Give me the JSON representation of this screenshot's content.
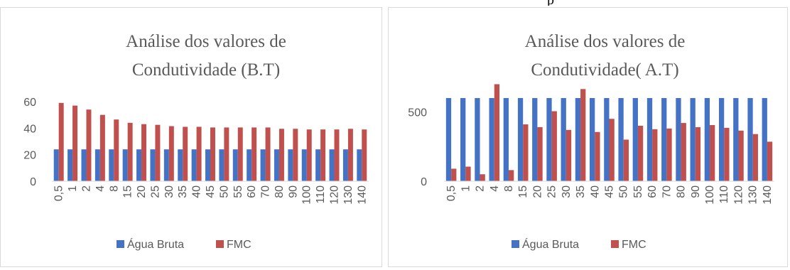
{
  "top_text": "p",
  "colors": {
    "agua_bruta": "#4472C4",
    "fmc": "#C0504D",
    "axis": "#d9d9d9",
    "text": "#595959"
  },
  "chart_data": [
    {
      "type": "bar",
      "title": [
        "Análise dos valores de",
        "Condutividade (B.T)"
      ],
      "categories": [
        "0,5",
        "1",
        "2",
        "4",
        "8",
        "15",
        "20",
        "25",
        "30",
        "35",
        "40",
        "45",
        "50",
        "55",
        "60",
        "70",
        "80",
        "90",
        "100",
        "110",
        "120",
        "130",
        "140"
      ],
      "ylim": [
        0,
        60
      ],
      "yticks": [
        0,
        20,
        40,
        60
      ],
      "grid": false,
      "legend_position": "bottom",
      "series": [
        {
          "name": "Água Bruta",
          "color": "#4472C4",
          "values": [
            24,
            24,
            24,
            24,
            24,
            24,
            24,
            24,
            24,
            24,
            24,
            24,
            24,
            24,
            24,
            24,
            24,
            24,
            24,
            24,
            24,
            24,
            24
          ]
        },
        {
          "name": "FMC",
          "color": "#C0504D",
          "values": [
            59,
            57,
            54,
            50,
            46.5,
            44,
            43,
            42.5,
            41.5,
            41,
            41,
            40.5,
            40.5,
            40.5,
            40.5,
            40.5,
            39.5,
            39.5,
            39,
            39,
            39,
            39.5,
            39
          ]
        }
      ]
    },
    {
      "type": "bar",
      "title": [
        "Análise dos valores de",
        "Condutividade( A.T)"
      ],
      "categories": [
        "0,5",
        "1",
        "2",
        "4",
        "8",
        "15",
        "20",
        "25",
        "30",
        "35",
        "40",
        "45",
        "50",
        "55",
        "60",
        "70",
        "80",
        "90",
        "100",
        "110",
        "120",
        "130",
        "140"
      ],
      "ylim": [
        0,
        800
      ],
      "yticks": [
        0,
        500
      ],
      "grid": false,
      "legend_position": "bottom",
      "series": [
        {
          "name": "Água Bruta",
          "color": "#4472C4",
          "values": [
            600,
            600,
            600,
            600,
            600,
            600,
            600,
            600,
            600,
            600,
            600,
            600,
            600,
            600,
            600,
            600,
            600,
            600,
            600,
            600,
            600,
            600,
            600
          ]
        },
        {
          "name": "FMC",
          "color": "#C0504D",
          "values": [
            90,
            105,
            50,
            700,
            80,
            410,
            390,
            505,
            370,
            665,
            355,
            450,
            300,
            400,
            375,
            380,
            420,
            390,
            405,
            385,
            365,
            340,
            285
          ]
        }
      ]
    }
  ]
}
